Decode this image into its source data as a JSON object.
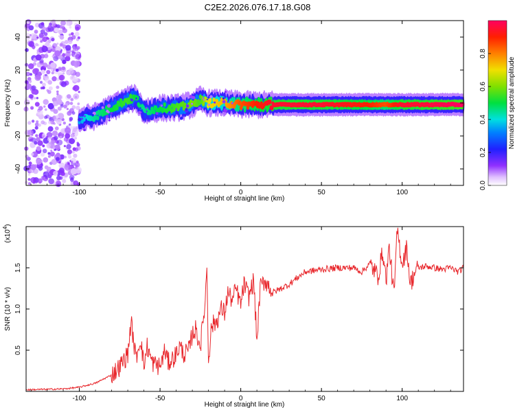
{
  "title": "C2E2.2026.076.17.18.G08",
  "colors": {
    "snr_line": "#e8262b",
    "background_spec": "#ffffff",
    "colormap": [
      "#ffffff",
      "#d8b0ff",
      "#8a2be2",
      "#1030ff",
      "#00c8ff",
      "#00e060",
      "#a0e000",
      "#ffd000",
      "#ff6000",
      "#ff0040"
    ]
  },
  "chart_data": [
    {
      "type": "heatmap",
      "title": "C2E2.2026.076.17.18.G08",
      "xlabel": "Height of straight line (km)",
      "ylabel": "Frequency (Hz)",
      "xlim": [
        -133,
        138
      ],
      "ylim": [
        -50,
        50
      ],
      "xticks": [
        -100,
        -50,
        0,
        50,
        100
      ],
      "xtick_labels": [
        "-100",
        "-50",
        "0",
        "50",
        "100"
      ],
      "yticks": [
        -40,
        -20,
        0,
        20,
        40
      ],
      "ytick_labels": [
        "-40",
        "-20",
        "0",
        "20",
        "40"
      ],
      "colorbar": {
        "label": "Normalized spectral amplitude",
        "range": [
          0,
          1
        ],
        "ticks": [
          0.0,
          0.2,
          0.4,
          0.6,
          0.8
        ],
        "tick_labels": [
          "0.0",
          "0.2",
          "0.4",
          "0.6",
          "0.8"
        ]
      },
      "ridge": {
        "x": [
          -100,
          -90,
          -80,
          -70,
          -65,
          -60,
          -50,
          -40,
          -30,
          -25,
          -20,
          -10,
          0,
          10,
          20,
          50,
          80,
          90,
          100,
          110,
          138
        ],
        "frequency": [
          -10,
          -8,
          -3,
          2,
          3,
          -5,
          -3,
          -3,
          -1,
          2,
          0,
          0,
          -1,
          -1,
          -1,
          -1,
          -1,
          -1,
          -1,
          -1,
          -1
        ],
        "amplitude": [
          0.35,
          0.45,
          0.5,
          0.55,
          0.5,
          0.45,
          0.5,
          0.55,
          0.6,
          0.55,
          0.7,
          0.75,
          0.85,
          0.9,
          0.95,
          0.95,
          0.9,
          0.85,
          0.95,
          0.95,
          1.0
        ]
      },
      "noise_region_x": [
        -133,
        -100
      ]
    },
    {
      "type": "line",
      "xlabel": "Height of straight line (km)",
      "ylabel": "SNR (10 * v/v)",
      "y_multiplier": "(x10",
      "y_multiplier_exp": "4",
      "y_multiplier_close": ")",
      "xlim": [
        -133,
        138
      ],
      "ylim": [
        0,
        2.0
      ],
      "xticks": [
        -100,
        -50,
        0,
        50,
        100
      ],
      "xtick_labels": [
        "-100",
        "-50",
        "0",
        "50",
        "100"
      ],
      "yticks": [
        0.5,
        1.0,
        1.5
      ],
      "ytick_labels": [
        "0.5",
        "1.0",
        "1.5"
      ],
      "series": [
        {
          "name": "SNR",
          "x": [
            -133,
            -110,
            -100,
            -90,
            -80,
            -75,
            -70,
            -68,
            -65,
            -62,
            -60,
            -58,
            -55,
            -50,
            -47,
            -45,
            -42,
            -40,
            -38,
            -35,
            -32,
            -30,
            -28,
            -25,
            -22,
            -21,
            -20,
            -18,
            -15,
            -12,
            -10,
            -8,
            -5,
            -3,
            0,
            2,
            5,
            8,
            10,
            12,
            15,
            20,
            25,
            30,
            35,
            40,
            50,
            60,
            70,
            75,
            80,
            85,
            88,
            90,
            92,
            95,
            96,
            97,
            100,
            103,
            105,
            108,
            110,
            115,
            120,
            125,
            130,
            135,
            138
          ],
          "y": [
            0.02,
            0.03,
            0.05,
            0.1,
            0.2,
            0.3,
            0.45,
            0.85,
            0.4,
            0.65,
            0.3,
            0.55,
            0.35,
            0.3,
            0.5,
            0.35,
            0.4,
            0.45,
            0.55,
            0.45,
            0.5,
            0.7,
            0.75,
            0.55,
            1.1,
            1.55,
            0.4,
            0.8,
            0.85,
            1.0,
            0.95,
            1.2,
            1.1,
            1.25,
            1.05,
            1.3,
            1.15,
            1.35,
            0.6,
            1.25,
            1.35,
            1.2,
            1.25,
            1.3,
            1.38,
            1.45,
            1.48,
            1.5,
            1.5,
            1.45,
            1.55,
            1.4,
            1.7,
            1.35,
            1.75,
            1.15,
            1.6,
            1.95,
            1.55,
            1.75,
            1.3,
            1.45,
            1.5,
            1.52,
            1.5,
            1.48,
            1.5,
            1.45,
            1.5
          ]
        }
      ]
    }
  ]
}
